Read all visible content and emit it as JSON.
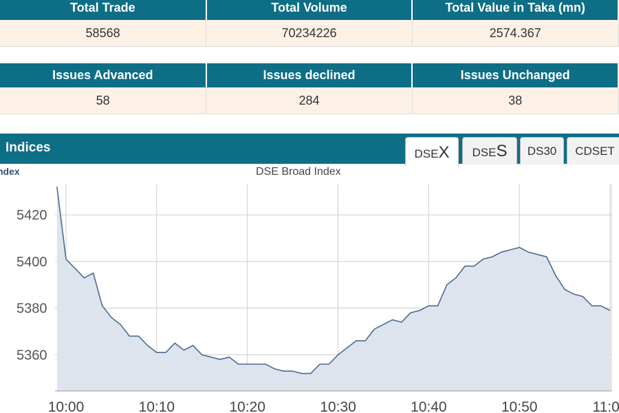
{
  "summary1": {
    "headers": [
      "Total Trade",
      "Total Volume",
      "Total Value in Taka (mn)"
    ],
    "values": [
      "58568",
      "70234226",
      "2574.367"
    ]
  },
  "summary2": {
    "headers": [
      "Issues Advanced",
      "Issues declined",
      "Issues Unchanged"
    ],
    "values": [
      "58",
      "284",
      "38"
    ]
  },
  "indices": {
    "title": "Indices",
    "subtitle": "ndex",
    "tabs": [
      {
        "prefix": "DSE",
        "suffix": "X",
        "active": true
      },
      {
        "prefix": "DSE",
        "suffix": "S",
        "active": false
      },
      {
        "label": "DS30",
        "active": false
      },
      {
        "label": "CDSET",
        "active": false
      }
    ]
  },
  "colors": {
    "header": "#0e6e86",
    "row": "#fdf1e6",
    "line": "#4a6b8f",
    "area": "#dde4ee"
  },
  "chart_data": {
    "type": "area",
    "title": "DSE Broad Index",
    "x_ticks": [
      "10:00",
      "10:10",
      "10:20",
      "10:30",
      "10:40",
      "10:50",
      "11:00"
    ],
    "y_ticks": [
      5360,
      5380,
      5400,
      5420
    ],
    "xlim": [
      "10:00",
      "11:00"
    ],
    "ylim": [
      5344.5,
      5433
    ],
    "grid": true,
    "series": [
      {
        "x": [
          "09:59",
          "10:00",
          "10:01",
          "10:02",
          "10:03",
          "10:04",
          "10:05",
          "10:06",
          "10:07",
          "10:08",
          "10:09",
          "10:10",
          "10:11",
          "10:12",
          "10:13",
          "10:14",
          "10:15",
          "10:16",
          "10:17",
          "10:18",
          "10:19",
          "10:20",
          "10:21",
          "10:22",
          "10:23",
          "10:24",
          "10:25",
          "10:26",
          "10:27",
          "10:28",
          "10:29",
          "10:30",
          "10:31",
          "10:32",
          "10:33",
          "10:34",
          "10:35",
          "10:36",
          "10:37",
          "10:38",
          "10:39",
          "10:40",
          "10:41",
          "10:42",
          "10:43",
          "10:44",
          "10:45",
          "10:46",
          "10:47",
          "10:48",
          "10:49",
          "10:50",
          "10:51",
          "10:52",
          "10:53",
          "10:54",
          "10:55",
          "10:56",
          "10:57",
          "10:58",
          "10:59",
          "11:00"
        ],
        "values": [
          5432,
          5401,
          5397,
          5393,
          5395,
          5381,
          5376,
          5373,
          5368,
          5368,
          5364,
          5361,
          5361,
          5365,
          5362,
          5364,
          5360,
          5359,
          5358,
          5359,
          5356,
          5356,
          5356,
          5356,
          5354,
          5353,
          5353,
          5352,
          5352,
          5356,
          5356,
          5360,
          5363,
          5366,
          5366,
          5371,
          5373,
          5375,
          5374,
          5378,
          5379,
          5381,
          5381,
          5390,
          5393,
          5398,
          5398,
          5401,
          5402,
          5404,
          5405,
          5406,
          5404,
          5403,
          5402,
          5394,
          5388,
          5386,
          5385,
          5381,
          5381,
          5379
        ]
      }
    ]
  }
}
